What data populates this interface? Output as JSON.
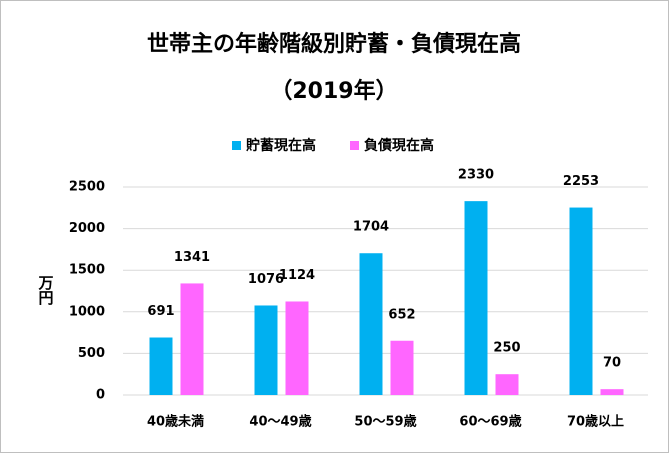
{
  "chart_data": {
    "type": "bar",
    "title": "世帯主の年齢階級別貯蓄・負債現在高",
    "subtitle": "（2019年）",
    "y_label": "万円",
    "categories": [
      "40歳未満",
      "40～49歳",
      "50～59歳",
      "60～69歳",
      "70歳以上"
    ],
    "series": [
      {
        "name": "貯蓄現在高",
        "color": "#00b0f0",
        "values": [
          691,
          1076,
          1704,
          2330,
          2253
        ]
      },
      {
        "name": "負債現在高",
        "color": "#ff66ff",
        "values": [
          1341,
          1124,
          652,
          250,
          70
        ]
      }
    ],
    "ylim": [
      0,
      2500
    ],
    "yticks": [
      0,
      500,
      1000,
      1500,
      2000,
      2500
    ],
    "grid": true,
    "legend": "top"
  }
}
